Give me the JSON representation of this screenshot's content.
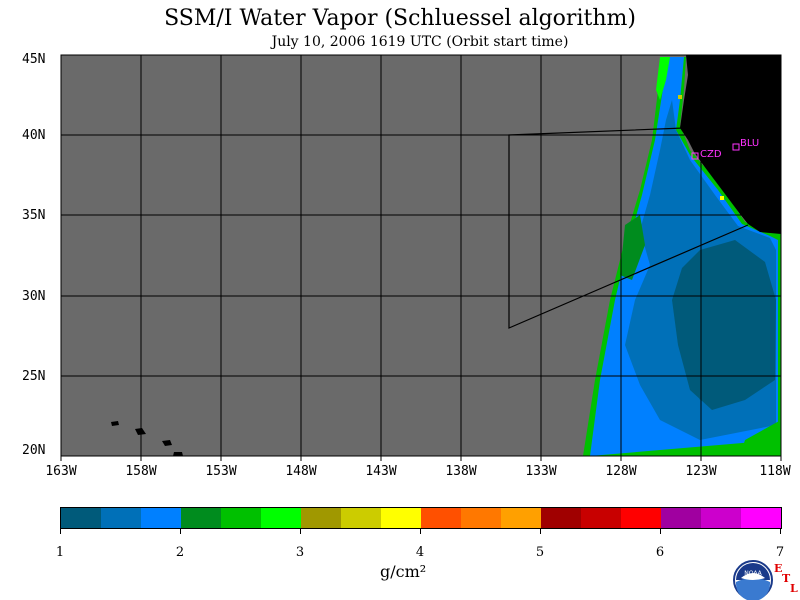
{
  "title": "SSM/I Water Vapor (Schluessel algorithm)",
  "subtitle": "July 10, 2006  1619 UTC  (Orbit start time)",
  "lat_labels": [
    "45N",
    "40N",
    "35N",
    "30N",
    "25N",
    "20N"
  ],
  "lon_labels": [
    "163W",
    "158W",
    "153W",
    "148W",
    "143W",
    "138W",
    "133W",
    "128W",
    "123W",
    "118W"
  ],
  "colorbar": {
    "ticks": [
      "1",
      "2",
      "3",
      "4",
      "5",
      "6",
      "7"
    ],
    "units": "g/cm²",
    "colors": [
      "#005a7a",
      "#0070b8",
      "#0080ff",
      "#008c1e",
      "#00c000",
      "#00ff00",
      "#a09800",
      "#cccc00",
      "#ffff00",
      "#ff5000",
      "#ff7800",
      "#ffa000",
      "#a00000",
      "#c80000",
      "#ff0000",
      "#a000a0",
      "#cc00cc",
      "#ff00ff"
    ]
  },
  "stations": [
    {
      "label": "CZD",
      "lon": -124.0,
      "lat": 38.6
    },
    {
      "label": "BLU",
      "lon": -121.0,
      "lat": 39.3
    }
  ],
  "logo": {
    "name": "NOAA",
    "lab": "ETL"
  },
  "colors": {
    "missing": "#6a6a6a",
    "land": "#000000",
    "station": "#ff33ff"
  }
}
